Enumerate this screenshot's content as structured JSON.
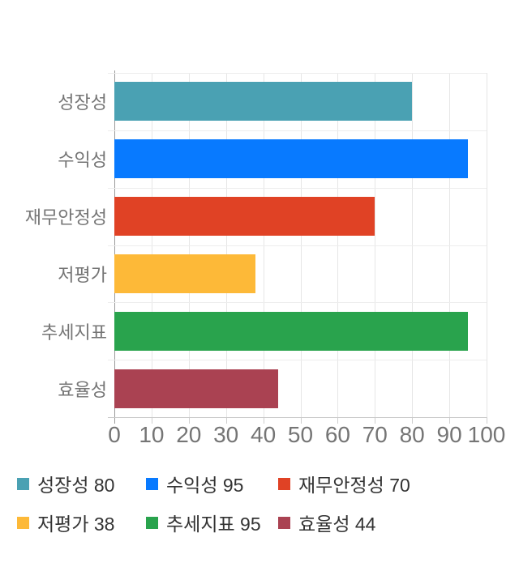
{
  "chart_data": {
    "type": "bar",
    "orientation": "horizontal",
    "title": "",
    "xlabel": "",
    "ylabel": "",
    "categories": [
      "성장성",
      "수익성",
      "재무안정성",
      "저평가",
      "추세지표",
      "효율성"
    ],
    "values": [
      80,
      95,
      70,
      38,
      95,
      44
    ],
    "colors": [
      "#4AA1B3",
      "#087AFF",
      "#E04225",
      "#FDB938",
      "#29A34D",
      "#AA4252"
    ],
    "xlim": [
      0,
      100
    ],
    "x_ticks": [
      0,
      10,
      20,
      30,
      40,
      50,
      60,
      70,
      80,
      90,
      100
    ],
    "grid": "vertical-only",
    "legend_position": "bottom",
    "legend": [
      {
        "label": "성장성",
        "value": 80,
        "color": "#4AA1B3"
      },
      {
        "label": "수익성",
        "value": 95,
        "color": "#087AFF"
      },
      {
        "label": "재무안정성",
        "value": 70,
        "color": "#E04225"
      },
      {
        "label": "저평가",
        "value": 38,
        "color": "#FDB938"
      },
      {
        "label": "추세지표",
        "value": 95,
        "color": "#29A34D"
      },
      {
        "label": "효율성",
        "value": 44,
        "color": "#AA4252"
      }
    ]
  },
  "style_colors": {
    "axis_text": "#757575",
    "legend_text": "#333333",
    "gridline": "#e6e6e6",
    "baseline_axis": "#9a9a9a"
  }
}
